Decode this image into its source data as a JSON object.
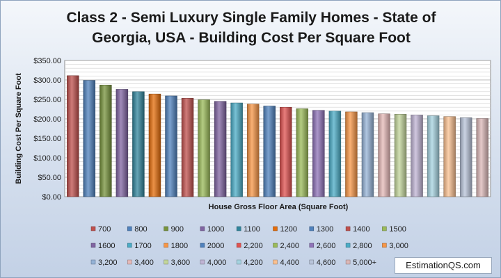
{
  "chart_data": {
    "type": "bar",
    "title": "Class 2 - Semi Luxury Single Family Homes  - State of\nGeorgia, USA  - Building Cost Per Square Foot",
    "xlabel": "House Gross Floor Area (Square Foot)",
    "ylabel": "Building Cost Per Square Foot",
    "ylim": [
      0,
      350
    ],
    "yticks": [
      "$0.00",
      "$50.00",
      "$100.00",
      "$150.00",
      "$200.00",
      "$250.00",
      "$300.00",
      "$350.00"
    ],
    "grid": true,
    "legend_position": "bottom",
    "categories": [
      "700",
      "800",
      "900",
      "1000",
      "1100",
      "1200",
      "1300",
      "1400",
      "1500",
      "1600",
      "1700",
      "1800",
      "2000",
      "2,200",
      "2,400",
      "2,600",
      "2,800",
      "3,000",
      "3,200",
      "3,400",
      "3,600",
      "4,000",
      "4,200",
      "4,400",
      "4,600",
      "5,000+"
    ],
    "values": [
      311,
      299,
      287,
      276,
      270,
      264,
      259,
      253,
      249,
      245,
      241,
      238,
      233,
      230,
      226,
      222,
      220,
      218,
      216,
      213,
      212,
      210,
      208,
      206,
      203,
      201
    ],
    "colors": [
      "#c0504d",
      "#4f81bd",
      "#77933c",
      "#8064a2",
      "#31859c",
      "#e46c0a",
      "#4f81bd",
      "#c0504d",
      "#9bbb59",
      "#8064a2",
      "#4bacc6",
      "#f79646",
      "#4f81bd",
      "#e05250",
      "#9bbb59",
      "#8f73b8",
      "#4bacc6",
      "#f79646",
      "#95b3d7",
      "#e6b9b8",
      "#c3d69b",
      "#c0b4d4",
      "#a5d3e0",
      "#fac090",
      "#b8c4da",
      "#dcb8b8"
    ]
  },
  "watermark": "EstimationQS.com"
}
